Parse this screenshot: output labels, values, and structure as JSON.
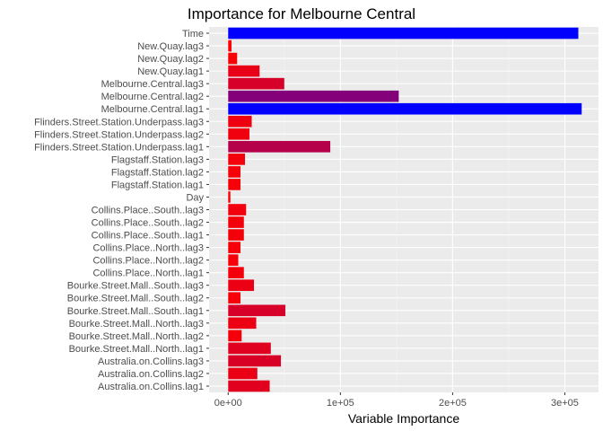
{
  "chart_data": {
    "type": "bar",
    "orientation": "horizontal",
    "title": "Importance for Melbourne Central",
    "xlabel": "Variable Importance",
    "ylabel": "",
    "xlim": [
      -17000,
      330000
    ],
    "x_ticks": [
      0,
      100000,
      200000,
      300000
    ],
    "x_tick_labels": [
      "0e+00",
      "1e+05",
      "2e+05",
      "3e+05"
    ],
    "grid": true,
    "color_scale": {
      "low": "#ff0000",
      "high": "#0000ff",
      "min": 0,
      "max": 315000
    },
    "categories": [
      "Time",
      "New.Quay.lag3",
      "New.Quay.lag2",
      "New.Quay.lag1",
      "Melbourne.Central.lag3",
      "Melbourne.Central.lag2",
      "Melbourne.Central.lag1",
      "Flinders.Street.Station.Underpass.lag3",
      "Flinders.Street.Station.Underpass.lag2",
      "Flinders.Street.Station.Underpass.lag1",
      "Flagstaff.Station.lag3",
      "Flagstaff.Station.lag2",
      "Flagstaff.Station.lag1",
      "Day",
      "Collins.Place..South..lag3",
      "Collins.Place..South..lag2",
      "Collins.Place..South..lag1",
      "Collins.Place..North..lag3",
      "Collins.Place..North..lag2",
      "Collins.Place..North..lag1",
      "Bourke.Street.Mall..South..lag3",
      "Bourke.Street.Mall..South..lag2",
      "Bourke.Street.Mall..South..lag1",
      "Bourke.Street.Mall..North..lag3",
      "Bourke.Street.Mall..North..lag2",
      "Bourke.Street.Mall..North..lag1",
      "Australia.on.Collins.lag3",
      "Australia.on.Collins.lag2",
      "Australia.on.Collins.lag1"
    ],
    "values": [
      312000,
      3000,
      8000,
      28000,
      50000,
      152000,
      315000,
      21000,
      19000,
      91000,
      15000,
      11000,
      11000,
      2000,
      16000,
      14000,
      14000,
      11000,
      9000,
      14000,
      23000,
      11000,
      51000,
      25000,
      12000,
      38000,
      47000,
      26000,
      37000
    ]
  }
}
